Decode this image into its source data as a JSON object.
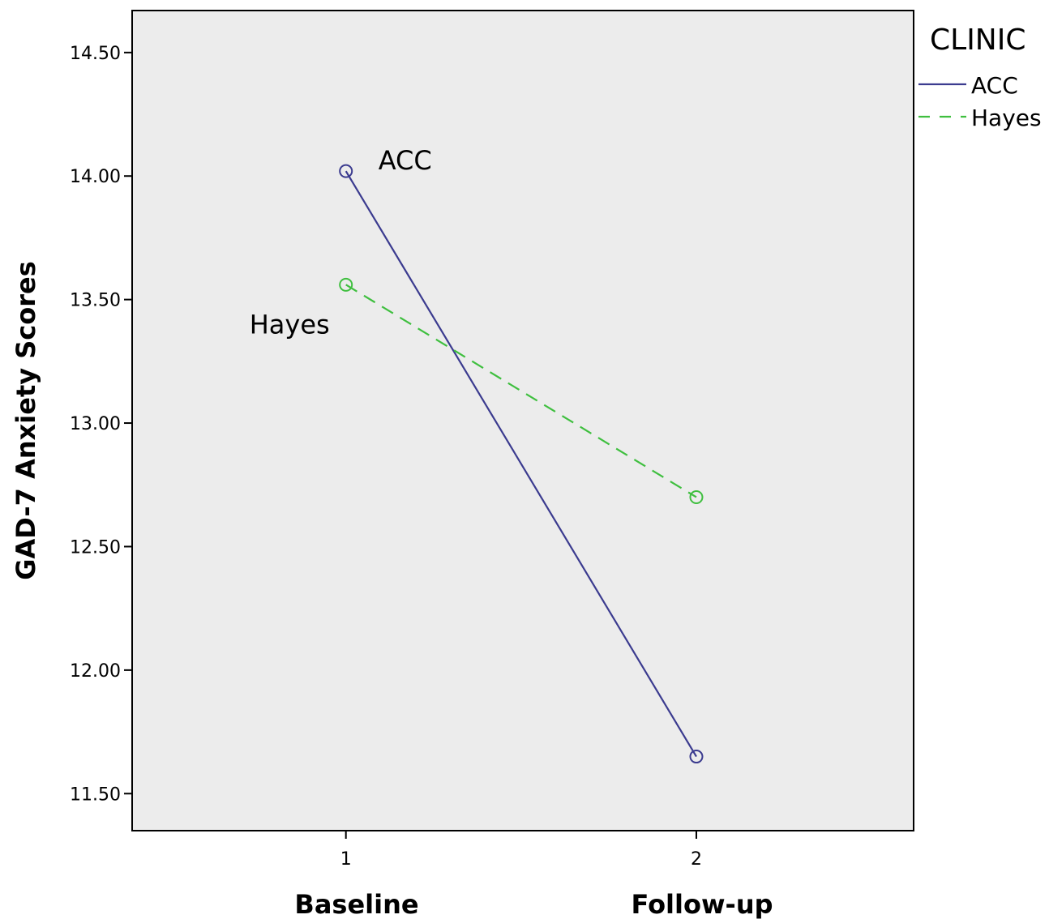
{
  "chart_data": {
    "type": "line",
    "ylabel": "GAD-7 Anxiety Scores",
    "x": [
      1,
      2
    ],
    "x_tick_labels": [
      "1",
      "2"
    ],
    "x_category_labels": [
      "Baseline",
      "Follow-up"
    ],
    "ylim": [
      11.35,
      14.67
    ],
    "y_ticks": [
      11.5,
      12.0,
      12.5,
      13.0,
      13.5,
      14.0,
      14.5
    ],
    "y_tick_labels": [
      "11.50",
      "12.00",
      "12.50",
      "13.00",
      "13.50",
      "14.00",
      "14.50"
    ],
    "xlim": [
      0.39,
      2.62
    ],
    "grid": false,
    "legend": {
      "title": "CLINIC",
      "placement": "top-right, outside plot"
    },
    "series": [
      {
        "name": "ACC",
        "values": [
          14.02,
          11.65
        ],
        "color": "#3b3b8f",
        "dash": "solid",
        "marker": "open-circle",
        "annotation": "ACC"
      },
      {
        "name": "Hayes",
        "values": [
          13.56,
          12.7
        ],
        "color": "#3fbf3f",
        "dash": "dashed",
        "marker": "open-circle",
        "annotation": "Hayes"
      }
    ],
    "plot_background": "#ececec"
  }
}
